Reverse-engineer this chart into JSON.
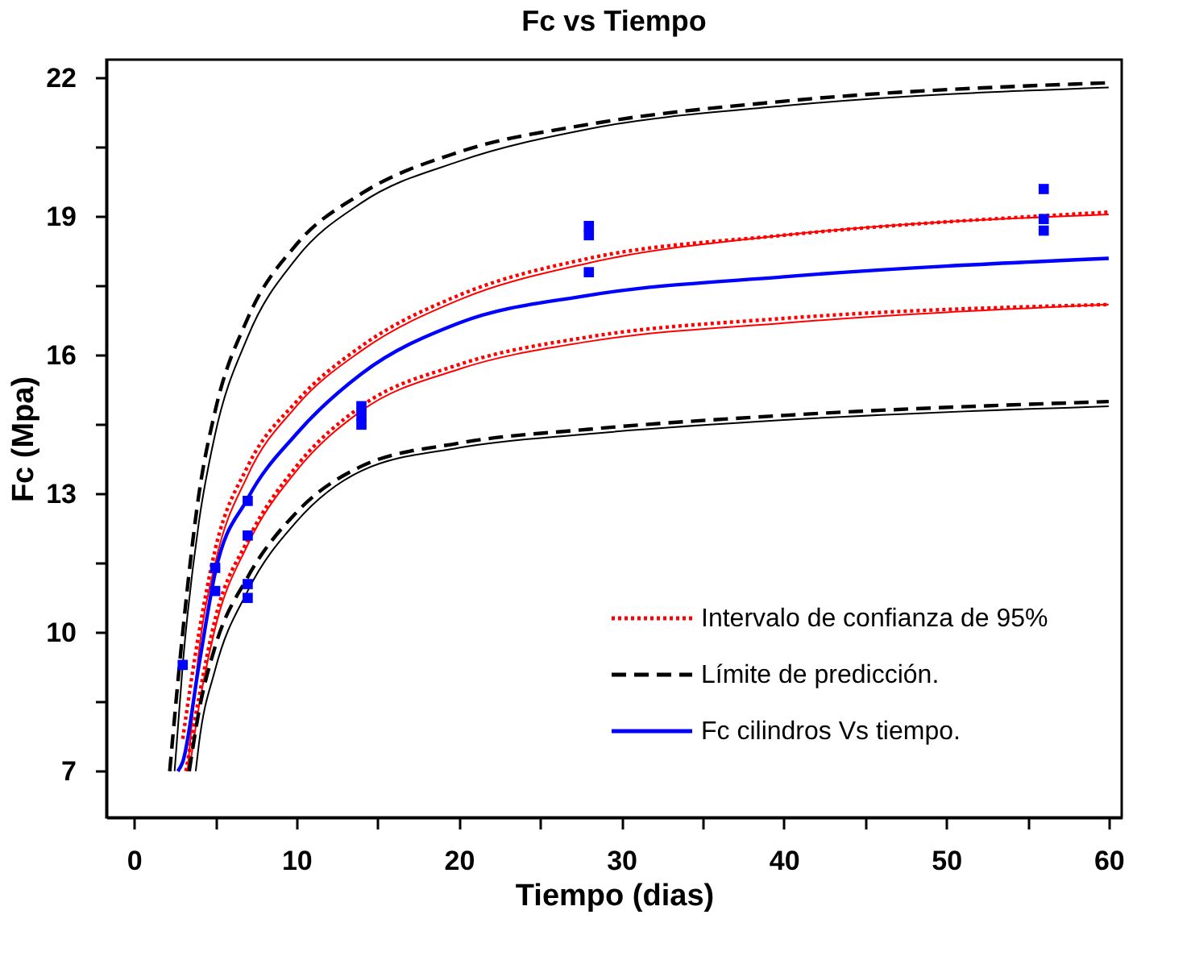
{
  "chart_data": {
    "type": "line",
    "title": "Fc vs Tiempo",
    "xlabel": "Tiempo (dias)",
    "ylabel": "Fc (Mpa)",
    "xlim": [
      -1.7,
      60.8
    ],
    "ylim": [
      6.0,
      22.4
    ],
    "xticks": [
      0,
      {
        "value": 5,
        "label": null
      },
      10,
      {
        "value": 15,
        "label": null
      },
      20,
      {
        "value": 25,
        "label": null
      },
      30,
      {
        "value": 35,
        "label": null
      },
      40,
      {
        "value": 45,
        "label": null
      },
      50,
      {
        "value": 55,
        "label": null
      },
      60
    ],
    "yticks": [
      7,
      {
        "value": 8.5,
        "label": null
      },
      10,
      {
        "value": 11.5,
        "label": null
      },
      13,
      {
        "value": 14.5,
        "label": null
      },
      16,
      {
        "value": 17.5,
        "label": null
      },
      19,
      {
        "value": 20.5,
        "label": null
      },
      22
    ],
    "grid": false,
    "legend": "bottom right",
    "series": [
      {
        "name": "Intervalo de confianza de 95%",
        "color": "#ff0000",
        "line_style": "dotted",
        "x": [
          3.0,
          4,
          5,
          7,
          10,
          14,
          20,
          28,
          40,
          60
        ],
        "values": [
          7.7,
          10.0,
          11.8,
          13.6,
          15.0,
          16.2,
          17.3,
          18.1,
          18.6,
          19.1
        ]
      },
      {
        "color": "#ff0000",
        "line_style": "dotted",
        "x": [
          3.2,
          4,
          5,
          7,
          10,
          14,
          20,
          28,
          40,
          60
        ],
        "values": [
          7.0,
          8.6,
          10.3,
          12.0,
          13.6,
          14.9,
          15.8,
          16.4,
          16.8,
          17.1
        ]
      },
      {
        "color": "#ff0000",
        "line_style": "solid",
        "x": [
          3.3,
          4,
          5,
          7,
          10,
          14,
          20,
          28,
          40,
          60
        ],
        "values": [
          7.0,
          9.6,
          11.5,
          13.4,
          14.9,
          16.1,
          17.2,
          18.0,
          18.6,
          19.05
        ]
      },
      {
        "color": "#ff0000",
        "line_style": "solid",
        "x": [
          3.4,
          4,
          5,
          7,
          10,
          14,
          20,
          28,
          40,
          60
        ],
        "values": [
          7.0,
          8.4,
          10.1,
          11.9,
          13.5,
          14.8,
          15.7,
          16.3,
          16.7,
          17.1
        ]
      },
      {
        "name": "Límite de predicción.",
        "color": "#000000",
        "line_style": "dashed",
        "x": [
          2.2,
          3,
          4,
          5,
          7,
          10,
          14,
          20,
          28,
          40,
          60
        ],
        "values": [
          7.0,
          10.0,
          13.0,
          14.8,
          16.8,
          18.4,
          19.5,
          20.4,
          21.0,
          21.5,
          21.9
        ]
      },
      {
        "color": "#000000",
        "line_style": "dashed",
        "x": [
          3.4,
          4,
          5,
          7,
          10,
          14,
          20,
          28,
          40,
          60
        ],
        "values": [
          7.0,
          8.3,
          9.7,
          11.2,
          12.6,
          13.6,
          14.1,
          14.4,
          14.7,
          15.0
        ]
      },
      {
        "color": "#000000",
        "line_style": "solid",
        "x": [
          2.5,
          3,
          4,
          5,
          7,
          10,
          14,
          20,
          28,
          40,
          60
        ],
        "values": [
          7.0,
          9.3,
          12.4,
          14.3,
          16.4,
          18.1,
          19.3,
          20.2,
          20.9,
          21.4,
          21.8
        ]
      },
      {
        "color": "#000000",
        "line_style": "solid",
        "x": [
          3.8,
          4,
          5,
          7,
          10,
          14,
          20,
          28,
          40,
          60
        ],
        "values": [
          7.0,
          7.6,
          9.2,
          10.9,
          12.4,
          13.5,
          14.0,
          14.3,
          14.6,
          14.9
        ]
      },
      {
        "name": "Fc cilindros Vs tiempo.",
        "color": "#0000ff",
        "line_style": "solid",
        "x": [
          2.7,
          3,
          4,
          5,
          7,
          10,
          14,
          20,
          28,
          40,
          60
        ],
        "values": [
          7.0,
          7.2,
          9.3,
          11.3,
          12.9,
          14.3,
          15.6,
          16.7,
          17.3,
          17.7,
          18.1
        ]
      },
      {
        "type": "scatter",
        "color": "#0000ff",
        "marker": "square",
        "x": [
          3,
          5,
          5,
          7,
          7,
          7,
          7,
          14,
          14,
          14,
          28,
          28,
          28,
          56,
          56,
          56
        ],
        "values": [
          9.3,
          11.4,
          10.9,
          12.85,
          12.1,
          11.05,
          10.75,
          14.9,
          14.7,
          14.5,
          18.8,
          18.6,
          17.8,
          19.6,
          18.95,
          18.7
        ]
      }
    ]
  }
}
